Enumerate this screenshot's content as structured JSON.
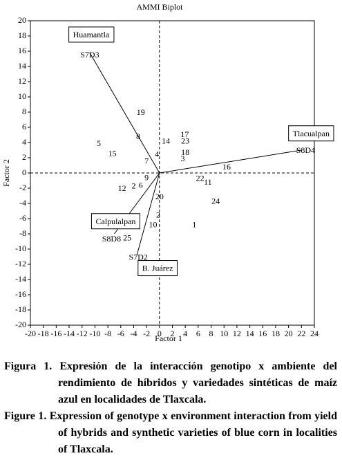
{
  "chart_data": {
    "type": "biplot",
    "title": "AMMI Biplot",
    "x_label": "Factor 1",
    "y_label": "Factor 2",
    "xlim": [
      -20,
      24
    ],
    "ylim": [
      -20,
      20
    ],
    "xticks": [
      -20,
      -18,
      -16,
      -14,
      -12,
      -10,
      -8,
      -6,
      -4,
      -2,
      0,
      2,
      4,
      6,
      8,
      10,
      12,
      14,
      16,
      18,
      20,
      22,
      24
    ],
    "yticks": [
      -20,
      -18,
      -16,
      -14,
      -12,
      -10,
      -8,
      -6,
      -4,
      -2,
      0,
      2,
      4,
      6,
      8,
      10,
      12,
      14,
      16,
      18,
      20
    ],
    "genotypes": {
      "labels": [
        "19",
        "8",
        "14",
        "17",
        "23",
        "18",
        "3",
        "4",
        "7",
        "5",
        "15",
        "16",
        "9",
        "2",
        "6",
        "12",
        "22",
        "11",
        "24",
        "20",
        "2",
        "10",
        "1",
        "25"
      ],
      "x": [
        -2.9,
        -3.3,
        1.0,
        3.9,
        4.0,
        4.0,
        3.6,
        -0.4,
        -2.0,
        -9.4,
        -7.3,
        10.4,
        -2.0,
        -4.0,
        -2.9,
        -5.8,
        6.3,
        7.5,
        8.7,
        0.0,
        -0.2,
        -1.0,
        5.4,
        -5.0
      ],
      "y": [
        7.9,
        4.7,
        4.1,
        5.0,
        4.1,
        2.6,
        1.8,
        2.4,
        1.5,
        3.8,
        2.5,
        0.7,
        -0.7,
        -1.8,
        -1.7,
        -2.1,
        -0.8,
        -1.3,
        -3.8,
        -3.2,
        -5.6,
        -6.9,
        -6.9,
        -8.6
      ]
    },
    "environments": [
      {
        "name": "Huamantla",
        "genotype": "S7D3",
        "x": -10.8,
        "y": 15.8
      },
      {
        "name": "Tlacualpan",
        "genotype": "S8D4",
        "x": 22,
        "y": 3
      },
      {
        "name": "Calpulalpan",
        "genotype": "S8D8",
        "x": -7,
        "y": -8
      },
      {
        "name": "B. Juárez",
        "genotype": "S7D2",
        "x": -3.5,
        "y": -10.8
      }
    ]
  },
  "caption": {
    "es": "Figura 1. Expresión de la interacción genotipo x ambiente del rendimiento de híbridos y variedades sintéticas de maíz azul en localidades de Tlaxcala.",
    "en": "Figure 1. Expression of genotype x environment interaction from yield of hybrids and synthetic varieties of blue corn in localities of Tlaxcala."
  }
}
